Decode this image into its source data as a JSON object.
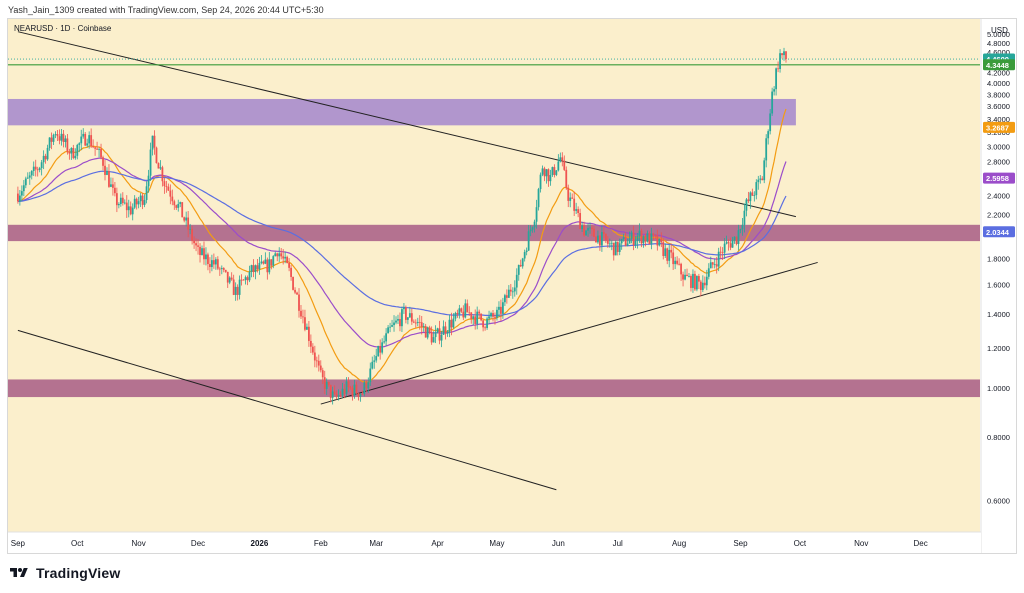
{
  "header": {
    "credit": "Yash_Jain_1309 created with TradingView.com, Sep 24, 2026 20:44 UTC+5:30"
  },
  "brand": {
    "name": "TradingView",
    "logo_icon": "tradingview-logo-icon"
  },
  "colors": {
    "background": "#fbefcc",
    "up": "#26a69a",
    "down": "#ef5350",
    "ema_fast": "#f39c12",
    "ema_mid": "#9b4dca",
    "ema_slow": "#5b6ee1",
    "resistance_zone": "#a98ccd",
    "support_zone": "#b06a8c",
    "hline": "#3a9b3a",
    "trendline": "#222222"
  },
  "chart_data": {
    "type": "candlestick",
    "symbol_label": "NEARUSD · 1D · Coinbase",
    "currency": "USD",
    "scale": "log",
    "ylim": [
      0.52,
      5.35
    ],
    "y_ticks": [
      "5.0000",
      "4.8000",
      "4.6000",
      "4.2000",
      "4.0000",
      "3.8000",
      "3.6000",
      "3.4000",
      "3.2000",
      "3.0000",
      "2.8000",
      "2.6000",
      "2.4000",
      "2.2000",
      "1.8000",
      "1.6000",
      "1.4000",
      "1.2000",
      "1.0000",
      "0.8000",
      "0.6000"
    ],
    "x_ticks": [
      "Sep",
      "Oct",
      "Nov",
      "Dec",
      "2026",
      "Feb",
      "Mar",
      "Apr",
      "May",
      "Jun",
      "Jul",
      "Aug",
      "Sep",
      "Oct",
      "Nov",
      "Dec"
    ],
    "price_labels": [
      {
        "value": 4.46,
        "text": "4.4600",
        "color": "#26a69a"
      },
      {
        "value": 4.3448,
        "text": "4.3448",
        "color": "#3a9b3a"
      },
      {
        "value": 3.2687,
        "text": "3.2687",
        "color": "#f39c12"
      },
      {
        "value": 2.5958,
        "text": "2.5958",
        "color": "#9b4dca"
      },
      {
        "value": 2.0344,
        "text": "2.0344",
        "color": "#5b6ee1"
      }
    ],
    "zones": [
      {
        "name": "resistance zone",
        "low": 3.3,
        "high": 3.72
      },
      {
        "name": "support zone upper",
        "low": 1.95,
        "high": 2.1
      },
      {
        "name": "support zone lower",
        "low": 0.96,
        "high": 1.04
      }
    ],
    "hline": 4.3448,
    "trendlines": [
      {
        "from": [
          "2025-09-01",
          5.05
        ],
        "to": [
          "2026-09-29",
          2.18
        ]
      },
      {
        "from": [
          "2025-09-01",
          1.3
        ],
        "to": [
          "2026-05-31",
          0.63
        ]
      },
      {
        "from": [
          "2026-02-01",
          0.93
        ],
        "to": [
          "2026-10-10",
          1.77
        ]
      }
    ],
    "series_keypoints": [
      [
        "2025-09-01",
        2.42
      ],
      [
        "2025-09-12",
        2.75
      ],
      [
        "2025-09-20",
        3.22
      ],
      [
        "2025-09-28",
        2.9
      ],
      [
        "2025-10-06",
        3.15
      ],
      [
        "2025-10-14",
        2.8
      ],
      [
        "2025-10-20",
        2.35
      ],
      [
        "2025-10-28",
        2.25
      ],
      [
        "2025-11-04",
        2.4
      ],
      [
        "2025-11-08",
        3.05
      ],
      [
        "2025-11-14",
        2.55
      ],
      [
        "2025-11-22",
        2.25
      ],
      [
        "2025-12-01",
        1.85
      ],
      [
        "2025-12-10",
        1.75
      ],
      [
        "2025-12-20",
        1.55
      ],
      [
        "2025-12-28",
        1.7
      ],
      [
        "2026-01-06",
        1.75
      ],
      [
        "2026-01-10",
        1.88
      ],
      [
        "2026-01-16",
        1.7
      ],
      [
        "2026-01-24",
        1.35
      ],
      [
        "2026-02-01",
        1.05
      ],
      [
        "2026-02-08",
        0.95
      ],
      [
        "2026-02-14",
        1.0
      ],
      [
        "2026-02-22",
        0.98
      ],
      [
        "2026-03-01",
        1.15
      ],
      [
        "2026-03-08",
        1.3
      ],
      [
        "2026-03-15",
        1.4
      ],
      [
        "2026-03-22",
        1.35
      ],
      [
        "2026-03-30",
        1.25
      ],
      [
        "2026-04-08",
        1.35
      ],
      [
        "2026-04-15",
        1.42
      ],
      [
        "2026-04-25",
        1.35
      ],
      [
        "2026-05-02",
        1.4
      ],
      [
        "2026-05-12",
        1.7
      ],
      [
        "2026-05-20",
        2.2
      ],
      [
        "2026-05-24",
        2.75
      ],
      [
        "2026-05-28",
        2.6
      ],
      [
        "2026-06-02",
        2.85
      ],
      [
        "2026-06-06",
        2.4
      ],
      [
        "2026-06-14",
        2.05
      ],
      [
        "2026-06-22",
        1.98
      ],
      [
        "2026-06-30",
        1.88
      ],
      [
        "2026-07-05",
        1.95
      ],
      [
        "2026-07-12",
        2.0
      ],
      [
        "2026-07-20",
        1.95
      ],
      [
        "2026-07-28",
        1.8
      ],
      [
        "2026-08-04",
        1.65
      ],
      [
        "2026-08-12",
        1.6
      ],
      [
        "2026-08-18",
        1.75
      ],
      [
        "2026-08-24",
        1.9
      ],
      [
        "2026-08-30",
        1.98
      ],
      [
        "2026-09-04",
        2.3
      ],
      [
        "2026-09-08",
        2.45
      ],
      [
        "2026-09-12",
        2.6
      ],
      [
        "2026-09-15",
        3.3
      ],
      [
        "2026-09-17",
        3.8
      ],
      [
        "2026-09-19",
        4.2
      ],
      [
        "2026-09-21",
        4.55
      ],
      [
        "2026-09-24",
        4.46
      ]
    ]
  }
}
